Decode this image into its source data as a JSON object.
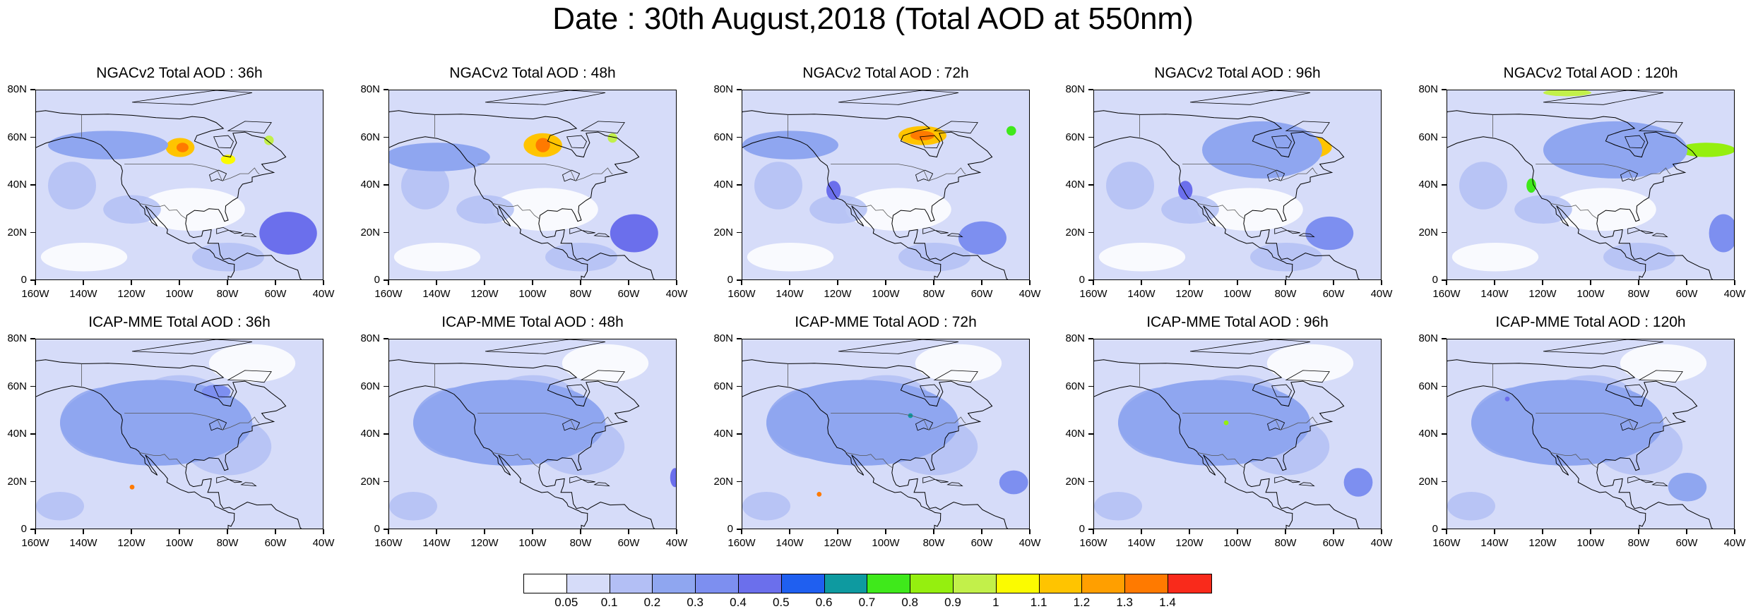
{
  "title": "Date : 30th August,2018 (Total AOD at 550nm)",
  "panels": [
    {
      "title": "NGACv2 Total AOD : 36h",
      "model": "NGACv2",
      "lead_hours": 36,
      "plumes": [
        {
          "lon": -100,
          "lat": 56,
          "rx": 6,
          "ry": 4,
          "level": 12
        },
        {
          "lon": -99,
          "lat": 56,
          "rx": 2.5,
          "ry": 2,
          "level": 14
        },
        {
          "lon": -80,
          "lat": 51,
          "rx": 3,
          "ry": 2,
          "level": 11
        },
        {
          "lon": -63,
          "lat": 59,
          "rx": 2,
          "ry": 2,
          "level": 10
        },
        {
          "lon": -55,
          "lat": 20,
          "rx": 12,
          "ry": 9,
          "level": 5
        },
        {
          "lon": -130,
          "lat": 57,
          "rx": 25,
          "ry": 6,
          "level": 3
        }
      ]
    },
    {
      "title": "NGACv2 Total AOD : 48h",
      "model": "NGACv2",
      "lead_hours": 48,
      "plumes": [
        {
          "lon": -96,
          "lat": 57,
          "rx": 8,
          "ry": 5,
          "level": 12
        },
        {
          "lon": -96,
          "lat": 57,
          "rx": 3,
          "ry": 3,
          "level": 14
        },
        {
          "lon": -67,
          "lat": 60,
          "rx": 2,
          "ry": 2,
          "level": 10
        },
        {
          "lon": -58,
          "lat": 20,
          "rx": 10,
          "ry": 8,
          "level": 5
        },
        {
          "lon": -140,
          "lat": 52,
          "rx": 22,
          "ry": 6,
          "level": 3
        }
      ]
    },
    {
      "title": "NGACv2 Total AOD : 72h",
      "model": "NGACv2",
      "lead_hours": 72,
      "plumes": [
        {
          "lon": -85,
          "lat": 61,
          "rx": 10,
          "ry": 4,
          "level": 12
        },
        {
          "lon": -85,
          "lat": 61,
          "rx": 5,
          "ry": 2,
          "level": 14
        },
        {
          "lon": -48,
          "lat": 63,
          "rx": 2,
          "ry": 2,
          "level": 8
        },
        {
          "lon": -122,
          "lat": 38,
          "rx": 3,
          "ry": 4,
          "level": 5
        },
        {
          "lon": -60,
          "lat": 18,
          "rx": 10,
          "ry": 7,
          "level": 4
        },
        {
          "lon": -140,
          "lat": 57,
          "rx": 20,
          "ry": 6,
          "level": 3
        }
      ]
    },
    {
      "title": "NGACv2 Total AOD : 96h",
      "model": "NGACv2",
      "lead_hours": 96,
      "plumes": [
        {
          "lon": -73,
          "lat": 56,
          "rx": 12,
          "ry": 5,
          "level": 12
        },
        {
          "lon": -72,
          "lat": 56,
          "rx": 6,
          "ry": 3,
          "level": 14
        },
        {
          "lon": -122,
          "lat": 38,
          "rx": 3,
          "ry": 4,
          "level": 5
        },
        {
          "lon": -62,
          "lat": 20,
          "rx": 10,
          "ry": 7,
          "level": 4
        },
        {
          "lon": -90,
          "lat": 55,
          "rx": 25,
          "ry": 12,
          "level": 3
        }
      ]
    },
    {
      "title": "NGACv2 Total AOD : 120h",
      "model": "NGACv2",
      "lead_hours": 120,
      "plumes": [
        {
          "lon": -52,
          "lat": 55,
          "rx": 12,
          "ry": 3,
          "level": 9
        },
        {
          "lon": -72,
          "lat": 62,
          "rx": 5,
          "ry": 2,
          "level": 9
        },
        {
          "lon": -110,
          "lat": 79,
          "rx": 10,
          "ry": 1.5,
          "level": 10
        },
        {
          "lon": -125,
          "lat": 40,
          "rx": 2,
          "ry": 3,
          "level": 8
        },
        {
          "lon": -45,
          "lat": 20,
          "rx": 6,
          "ry": 8,
          "level": 4
        },
        {
          "lon": -90,
          "lat": 55,
          "rx": 30,
          "ry": 12,
          "level": 3
        }
      ]
    },
    {
      "title": "ICAP-MME Total AOD : 36h",
      "model": "ICAP-MME",
      "lead_hours": 36,
      "plumes": [
        {
          "lon": -110,
          "lat": 45,
          "rx": 40,
          "ry": 18,
          "level": 3
        },
        {
          "lon": -120,
          "lat": 18,
          "rx": 1,
          "ry": 1,
          "level": 14
        },
        {
          "lon": -85,
          "lat": 58,
          "rx": 6,
          "ry": 3,
          "level": 4
        }
      ]
    },
    {
      "title": "ICAP-MME Total AOD : 48h",
      "model": "ICAP-MME",
      "lead_hours": 48,
      "plumes": [
        {
          "lon": -110,
          "lat": 45,
          "rx": 40,
          "ry": 18,
          "level": 3
        },
        {
          "lon": -41,
          "lat": 22,
          "rx": 2,
          "ry": 4,
          "level": 5
        }
      ]
    },
    {
      "title": "ICAP-MME Total AOD : 72h",
      "model": "ICAP-MME",
      "lead_hours": 72,
      "plumes": [
        {
          "lon": -110,
          "lat": 45,
          "rx": 40,
          "ry": 18,
          "level": 3
        },
        {
          "lon": -47,
          "lat": 20,
          "rx": 6,
          "ry": 5,
          "level": 4
        },
        {
          "lon": -128,
          "lat": 15,
          "rx": 1,
          "ry": 1,
          "level": 14
        },
        {
          "lon": -90,
          "lat": 48,
          "rx": 1,
          "ry": 1,
          "level": 7
        }
      ]
    },
    {
      "title": "ICAP-MME Total AOD : 96h",
      "model": "ICAP-MME",
      "lead_hours": 96,
      "plumes": [
        {
          "lon": -110,
          "lat": 45,
          "rx": 40,
          "ry": 18,
          "level": 3
        },
        {
          "lon": -50,
          "lat": 20,
          "rx": 6,
          "ry": 6,
          "level": 4
        },
        {
          "lon": -105,
          "lat": 45,
          "rx": 1,
          "ry": 1,
          "level": 9
        }
      ]
    },
    {
      "title": "ICAP-MME Total AOD : 120h",
      "model": "ICAP-MME",
      "lead_hours": 120,
      "plumes": [
        {
          "lon": -110,
          "lat": 45,
          "rx": 40,
          "ry": 18,
          "level": 3
        },
        {
          "lon": -60,
          "lat": 18,
          "rx": 8,
          "ry": 6,
          "level": 3
        },
        {
          "lon": -135,
          "lat": 55,
          "rx": 1,
          "ry": 1,
          "level": 5
        }
      ]
    }
  ],
  "axes": {
    "lat_labels": [
      "80N",
      "60N",
      "40N",
      "20N",
      "0"
    ],
    "lat_values": [
      80,
      60,
      40,
      20,
      0
    ],
    "lon_labels": [
      "160W",
      "140W",
      "120W",
      "100W",
      "80W",
      "60W",
      "40W"
    ],
    "lon_values": [
      -160,
      -140,
      -120,
      -100,
      -80,
      -60,
      -40
    ],
    "lon_range": [
      -160,
      -40
    ],
    "lat_range": [
      0,
      80
    ]
  },
  "colorbar": {
    "colors": [
      "#ffffff",
      "#d6dcf9",
      "#b3bff5",
      "#8fa6f0",
      "#7d8ff0",
      "#6b6fec",
      "#1f5ff0",
      "#0e9aa0",
      "#3fe91b",
      "#95ef0f",
      "#c2f04a",
      "#fbfb00",
      "#ffc400",
      "#ff9f00",
      "#ff7a00",
      "#f92a1b"
    ],
    "labels": [
      "0.05",
      "0.1",
      "0.2",
      "0.3",
      "0.4",
      "0.5",
      "0.6",
      "0.7",
      "0.8",
      "0.9",
      "1",
      "1.1",
      "1.2",
      "1.3",
      "1.4"
    ]
  }
}
